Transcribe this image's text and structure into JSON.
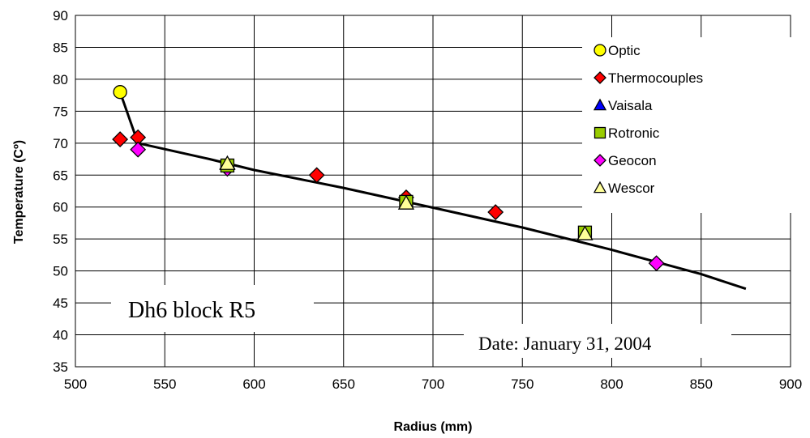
{
  "chart_data": {
    "type": "scatter",
    "xlabel": "Radius (mm)",
    "ylabel": "Temperature (Cº)",
    "xlim": [
      500,
      900
    ],
    "ylim": [
      35,
      90
    ],
    "xticks": [
      500,
      550,
      600,
      650,
      700,
      750,
      800,
      850,
      900
    ],
    "yticks": [
      35,
      40,
      45,
      50,
      55,
      60,
      65,
      70,
      75,
      80,
      85,
      90
    ],
    "grid": true,
    "legend_position": "top-right",
    "series": [
      {
        "name": "Optic",
        "marker": "circle",
        "color": "#ffff00",
        "points": [
          [
            525,
            78
          ]
        ]
      },
      {
        "name": "Thermocouples",
        "marker": "diamond",
        "color": "#ff0000",
        "points": [
          [
            525,
            70.6
          ],
          [
            535,
            70.9
          ],
          [
            635,
            65
          ],
          [
            685,
            61.5
          ],
          [
            735,
            59.2
          ]
        ]
      },
      {
        "name": "Vaisala",
        "marker": "triangle",
        "color": "#0000ff",
        "points": []
      },
      {
        "name": "Rotronic",
        "marker": "square",
        "color": "#99cc00",
        "points": [
          [
            585,
            66.5
          ],
          [
            685,
            60.8
          ],
          [
            785,
            56
          ]
        ]
      },
      {
        "name": "Geocon",
        "marker": "diamond",
        "color": "#ff00ff",
        "points": [
          [
            535,
            69
          ],
          [
            585,
            66
          ],
          [
            825,
            51.2
          ]
        ]
      },
      {
        "name": "Wescor",
        "marker": "triangle",
        "color": "#ffff99",
        "points": [
          [
            585,
            66.8
          ],
          [
            685,
            60.6
          ],
          [
            785,
            55.8
          ]
        ]
      }
    ],
    "fit_line": {
      "color": "#000000",
      "points": [
        [
          525,
          78
        ],
        [
          535,
          70
        ],
        [
          575,
          67.5
        ],
        [
          600,
          65.8
        ],
        [
          650,
          63
        ],
        [
          700,
          59.9
        ],
        [
          750,
          56.8
        ],
        [
          800,
          53.3
        ],
        [
          850,
          49.5
        ],
        [
          875,
          47.2
        ]
      ]
    },
    "annotations": [
      "Dh6 block R5",
      "Date: January 31, 2004"
    ]
  }
}
